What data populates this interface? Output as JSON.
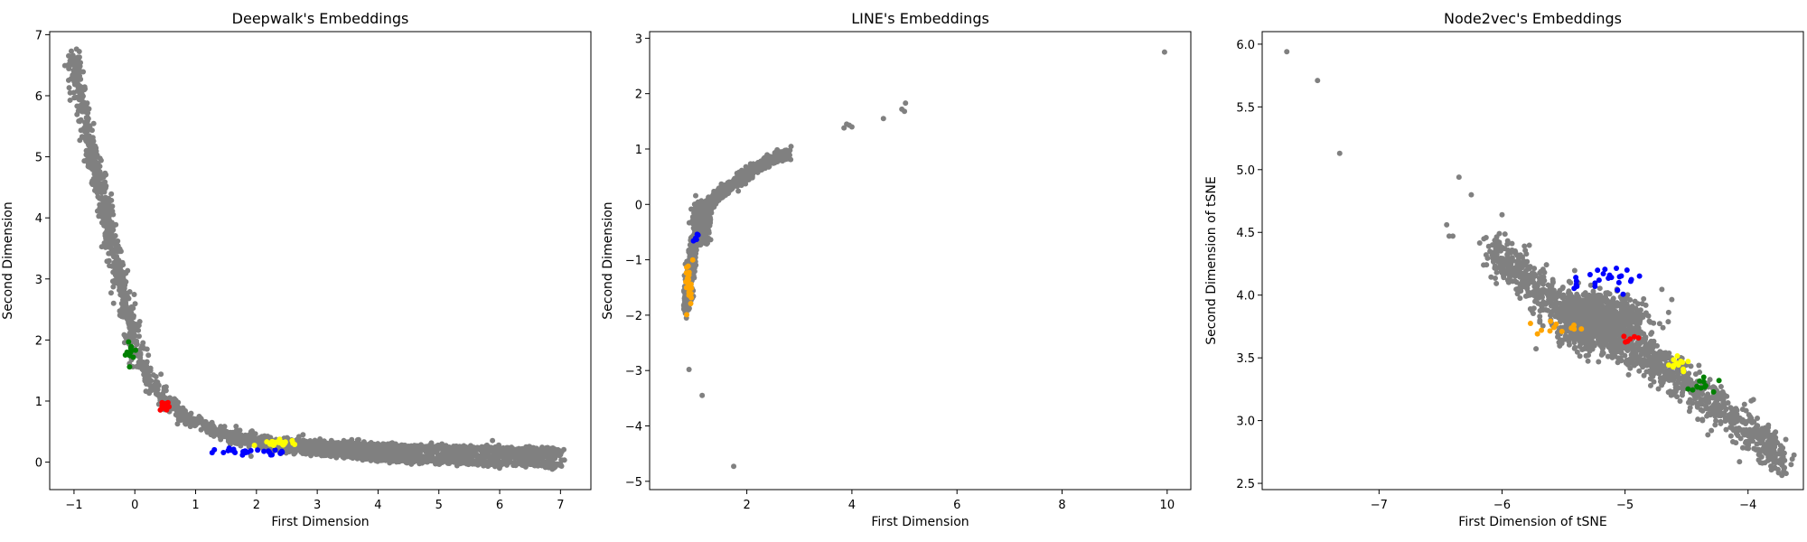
{
  "charts": [
    {
      "type": "scatter",
      "title": "Deepwalk's Embeddings",
      "xlabel": "First Dimension",
      "ylabel": "Second Dimension",
      "xlim": [
        -1.4,
        7.5
      ],
      "ylim": [
        -0.45,
        7.05
      ],
      "xticks": [
        -1,
        0,
        1,
        2,
        3,
        4,
        5,
        6,
        7
      ],
      "yticks": [
        0,
        1,
        2,
        3,
        4,
        5,
        6,
        7
      ],
      "colors": {
        "base": "#808080",
        "blue": "#0000ff",
        "yellow": "#ffff00",
        "red": "#ff0000",
        "green": "#008000",
        "orange": "#ffa500"
      },
      "series": [
        {
          "color": "base",
          "shape": "band",
          "curve": [
            [
              -1.02,
              6.7
            ],
            [
              -0.95,
              6.2
            ],
            [
              -0.75,
              5.3
            ],
            [
              -0.55,
              4.4
            ],
            [
              -0.35,
              3.5
            ],
            [
              -0.15,
              2.6
            ],
            [
              0.1,
              1.6
            ],
            [
              0.4,
              1.1
            ],
            [
              0.8,
              0.75
            ],
            [
              1.3,
              0.52
            ],
            [
              2.0,
              0.35
            ],
            [
              3.0,
              0.25
            ],
            [
              4.0,
              0.2
            ],
            [
              5.0,
              0.15
            ],
            [
              6.0,
              0.12
            ],
            [
              7.0,
              0.1
            ]
          ],
          "spread": [
            0.12,
            0.12
          ],
          "n": 1700
        },
        {
          "color": "base",
          "shape": "band",
          "curve": [
            [
              1.2,
              0.55
            ],
            [
              2.0,
              0.28
            ],
            [
              3.0,
              0.15
            ],
            [
              4.0,
              0.06
            ],
            [
              5.0,
              0.02
            ],
            [
              6.0,
              -0.02
            ],
            [
              7.0,
              -0.05
            ]
          ],
          "spread": [
            0.1,
            0.05
          ],
          "n": 700
        },
        {
          "color": "base",
          "shape": "band",
          "curve": [
            [
              2.0,
              0.36
            ],
            [
              3.0,
              0.3
            ],
            [
              4.0,
              0.27
            ],
            [
              5.0,
              0.24
            ],
            [
              6.0,
              0.22
            ],
            [
              7.0,
              0.2
            ]
          ],
          "spread": [
            0.08,
            0.04
          ],
          "n": 500
        },
        {
          "color": "blue",
          "shape": "blob",
          "center": [
            1.9,
            0.17
          ],
          "spread": [
            0.45,
            0.05
          ],
          "n": 28
        },
        {
          "color": "yellow",
          "shape": "blob",
          "center": [
            2.4,
            0.31
          ],
          "spread": [
            0.2,
            0.04
          ],
          "n": 22
        },
        {
          "color": "red",
          "shape": "blob",
          "center": [
            0.48,
            0.92
          ],
          "spread": [
            0.07,
            0.06
          ],
          "n": 14
        },
        {
          "color": "green",
          "shape": "blob",
          "center": [
            -0.08,
            1.8
          ],
          "spread": [
            0.05,
            0.15
          ],
          "n": 14
        }
      ]
    },
    {
      "type": "scatter",
      "title": "LINE's Embeddings",
      "xlabel": "First Dimension",
      "ylabel": "Second Dimension",
      "xlim": [
        0.15,
        10.45
      ],
      "ylim": [
        -5.15,
        3.12
      ],
      "xticks": [
        2,
        4,
        6,
        8,
        10
      ],
      "yticks": [
        -5,
        -4,
        -3,
        -2,
        -1,
        0,
        1,
        2,
        3
      ],
      "colors": {
        "base": "#808080",
        "blue": "#0000ff",
        "yellow": "#ffff00",
        "red": "#ff0000",
        "green": "#008000",
        "orange": "#ffa500"
      },
      "series": [
        {
          "color": "base",
          "shape": "band",
          "curve": [
            [
              0.85,
              -1.9
            ],
            [
              0.88,
              -1.5
            ],
            [
              0.95,
              -1.0
            ],
            [
              1.05,
              -0.5
            ],
            [
              1.2,
              -0.1
            ],
            [
              1.5,
              0.2
            ],
            [
              2.0,
              0.55
            ],
            [
              2.4,
              0.8
            ],
            [
              2.8,
              0.92
            ]
          ],
          "spread": [
            0.07,
            0.1
          ],
          "n": 1500
        },
        {
          "color": "base",
          "shape": "blob",
          "center": [
            1.15,
            -0.3
          ],
          "spread": [
            0.14,
            0.3
          ],
          "n": 400
        },
        {
          "color": "base",
          "shape": "points",
          "points": [
            [
              0.85,
              -2.05
            ],
            [
              0.9,
              -2.98
            ],
            [
              1.15,
              -3.45
            ],
            [
              1.75,
              -4.73
            ],
            [
              3.85,
              1.38
            ],
            [
              3.95,
              1.43
            ],
            [
              4.0,
              1.4
            ],
            [
              3.9,
              1.45
            ],
            [
              4.6,
              1.55
            ],
            [
              4.95,
              1.72
            ],
            [
              5.0,
              1.68
            ],
            [
              5.02,
              1.83
            ],
            [
              9.95,
              2.75
            ]
          ]
        },
        {
          "color": "orange",
          "shape": "blob",
          "center": [
            0.9,
            -1.45
          ],
          "spread": [
            0.05,
            0.35
          ],
          "n": 24
        },
        {
          "color": "blue",
          "shape": "blob",
          "center": [
            1.05,
            -0.55
          ],
          "spread": [
            0.05,
            0.1
          ],
          "n": 6
        }
      ]
    },
    {
      "type": "scatter",
      "title": "Node2vec's Embeddings",
      "xlabel": "First Dimension of tSNE",
      "ylabel": "Second Dimension of tSNE",
      "xlim": [
        -7.95,
        -3.55
      ],
      "ylim": [
        2.45,
        6.1
      ],
      "xticks": [
        -7,
        -6,
        -5,
        -4
      ],
      "yticks": [
        2.5,
        3.0,
        3.5,
        4.0,
        4.5,
        5.0,
        5.5,
        6.0
      ],
      "colors": {
        "base": "#808080",
        "blue": "#0000ff",
        "yellow": "#ffff00",
        "red": "#ff0000",
        "green": "#008000",
        "orange": "#ffa500"
      },
      "series": [
        {
          "color": "base",
          "shape": "band",
          "curve": [
            [
              -6.1,
              4.38
            ],
            [
              -5.7,
              4.05
            ],
            [
              -5.3,
              3.8
            ],
            [
              -4.9,
              3.55
            ],
            [
              -4.5,
              3.3
            ],
            [
              -4.1,
              3.0
            ],
            [
              -3.7,
              2.68
            ]
          ],
          "spread": [
            0.08,
            0.16
          ],
          "n": 1300
        },
        {
          "color": "base",
          "shape": "blob",
          "center": [
            -5.2,
            3.78
          ],
          "spread": [
            0.3,
            0.18
          ],
          "n": 900
        },
        {
          "color": "base",
          "shape": "points",
          "points": [
            [
              -7.75,
              5.94
            ],
            [
              -7.5,
              5.71
            ],
            [
              -7.32,
              5.13
            ],
            [
              -6.45,
              4.56
            ],
            [
              -6.43,
              4.47
            ],
            [
              -6.4,
              4.47
            ],
            [
              -6.35,
              4.94
            ],
            [
              -6.25,
              4.8
            ],
            [
              -6.15,
              4.24
            ],
            [
              -6.0,
              4.64
            ],
            [
              -3.65,
              2.65
            ],
            [
              -3.72,
              2.68
            ]
          ]
        },
        {
          "color": "blue",
          "shape": "blob",
          "center": [
            -5.15,
            4.12
          ],
          "spread": [
            0.22,
            0.08
          ],
          "n": 26
        },
        {
          "color": "orange",
          "shape": "blob",
          "center": [
            -5.5,
            3.75
          ],
          "spread": [
            0.18,
            0.05
          ],
          "n": 12
        },
        {
          "color": "red",
          "shape": "blob",
          "center": [
            -4.95,
            3.66
          ],
          "spread": [
            0.05,
            0.04
          ],
          "n": 6
        },
        {
          "color": "yellow",
          "shape": "blob",
          "center": [
            -4.58,
            3.45
          ],
          "spread": [
            0.08,
            0.04
          ],
          "n": 12
        },
        {
          "color": "green",
          "shape": "blob",
          "center": [
            -4.35,
            3.3
          ],
          "spread": [
            0.12,
            0.06
          ],
          "n": 12
        }
      ]
    }
  ]
}
